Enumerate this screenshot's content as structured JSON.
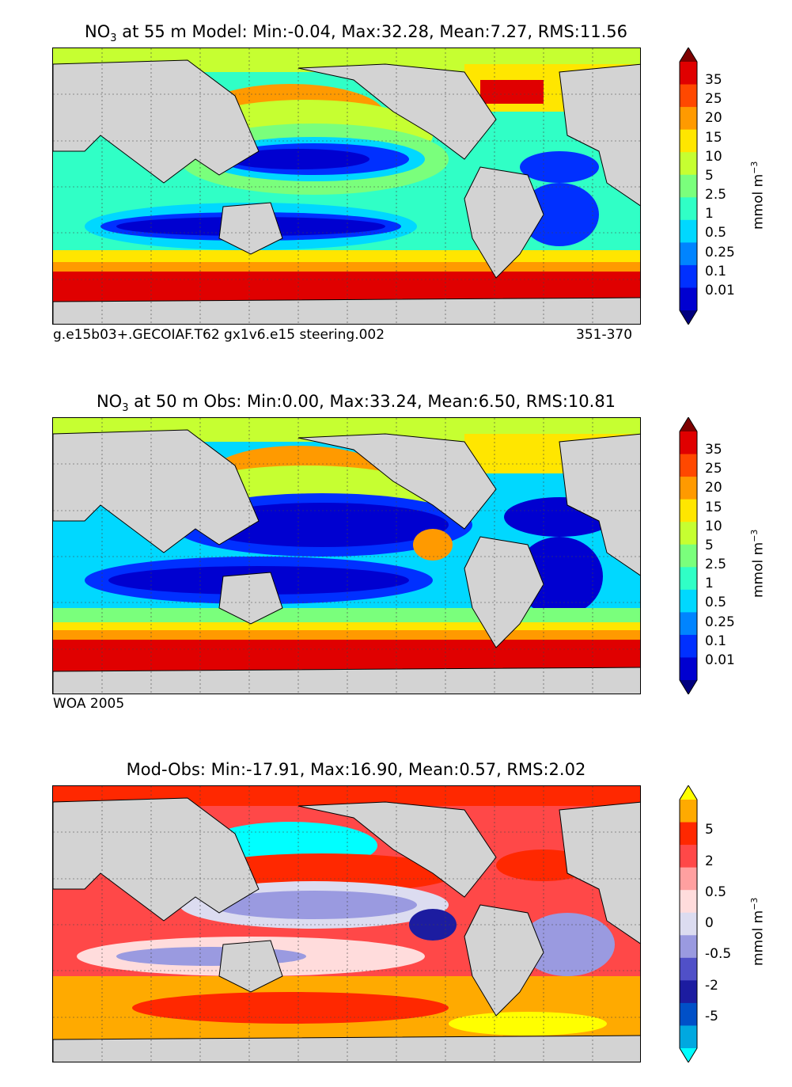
{
  "panels": [
    {
      "title_var": "NO",
      "title_sub": "3",
      "title_rest": " at 55 m Model: Min:-0.04, Max:32.28, Mean:7.27, RMS:11.56",
      "caption_left": "g.e15b03+.GECOIAF.T62 gx1v6.e15 steering.002",
      "caption_right": "351-370"
    },
    {
      "title_var": "NO",
      "title_sub": "3",
      "title_rest": " at 50 m Obs: Min:0.00, Max:33.24, Mean:6.50, RMS:10.81",
      "caption_left": "WOA 2005",
      "caption_right": ""
    },
    {
      "title_var": "",
      "title_sub": "",
      "title_rest": "Mod-Obs: Min:-17.91, Max:16.90, Mean:0.57, RMS:2.02",
      "caption_left": "",
      "caption_right": ""
    }
  ],
  "colorbar_conc": {
    "unit": "mmol m",
    "unit_sup": "−3",
    "labels": [
      "35",
      "25",
      "20",
      "15",
      "10",
      "5",
      "2.5",
      "1",
      "0.5",
      "0.25",
      "0.1",
      "0.01"
    ],
    "colors": [
      "#7f0000",
      "#e00000",
      "#ff4800",
      "#ff9a00",
      "#ffe600",
      "#c6ff31",
      "#7aff7c",
      "#30ffc6",
      "#00d8ff",
      "#0084ff",
      "#0030ff",
      "#0000d0",
      "#00007f"
    ]
  },
  "colorbar_diff": {
    "unit": "mmol m",
    "unit_sup": "−3",
    "labels": [
      "5",
      "2",
      "0.5",
      "0",
      "-0.5",
      "-2",
      "-5"
    ],
    "colors": [
      "#ffff00",
      "#ffaa00",
      "#ff2800",
      "#ff4848",
      "#ffa0a0",
      "#ffdcdc",
      "#dcdcf0",
      "#9a9ae0",
      "#5050c8",
      "#1c1ca0",
      "#0050c8",
      "#00a8e0",
      "#00ffff"
    ]
  },
  "chart_data": [
    {
      "type": "heatmap",
      "title": "NO3 at 55 m Model: Min:-0.04, Max:32.28, Mean:7.27, RMS:11.56",
      "min": -0.04,
      "max": 32.28,
      "mean": 7.27,
      "rms": 11.56,
      "colorbar_levels": [
        0.01,
        0.1,
        0.25,
        0.5,
        1,
        2.5,
        5,
        10,
        15,
        20,
        25,
        35
      ]
    },
    {
      "type": "heatmap",
      "title": "NO3 at 50 m Obs: Min:0.00, Max:33.24, Mean:6.50, RMS:10.81",
      "min": 0.0,
      "max": 33.24,
      "mean": 6.5,
      "rms": 10.81,
      "colorbar_levels": [
        0.01,
        0.1,
        0.25,
        0.5,
        1,
        2.5,
        5,
        10,
        15,
        20,
        25,
        35
      ]
    },
    {
      "type": "heatmap",
      "title": "Mod-Obs: Min:-17.91, Max:16.90, Mean:0.57, RMS:2.02",
      "min": -17.91,
      "max": 16.9,
      "mean": 0.57,
      "rms": 2.02,
      "colorbar_levels": [
        -5,
        -2,
        -0.5,
        0,
        0.5,
        2,
        5
      ]
    }
  ]
}
